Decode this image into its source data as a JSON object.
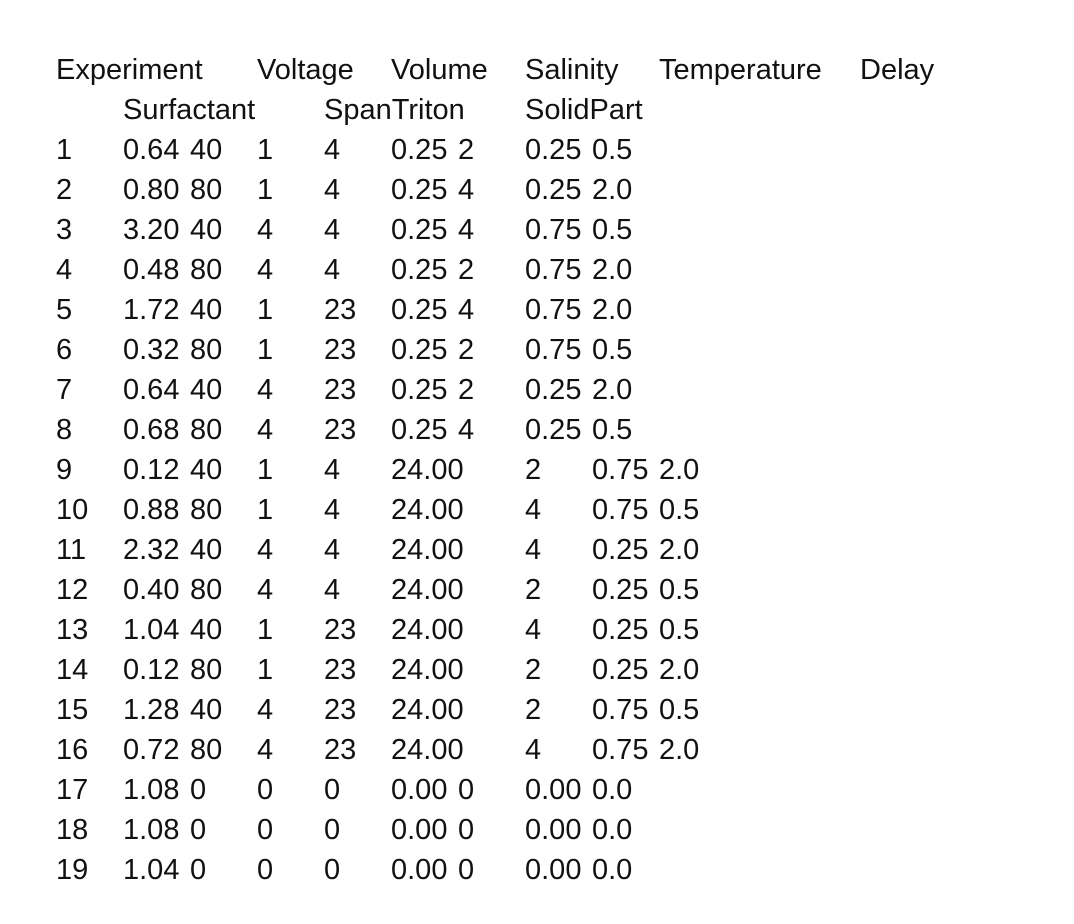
{
  "table": {
    "header": [
      "Experiment",
      "Voltage",
      "Volume",
      "Salinity",
      "Temperature",
      "Delay",
      "Surfactant",
      "SpanTriton",
      "SolidPart"
    ],
    "rows": [
      [
        "1",
        "0.64",
        "40",
        "1",
        "4",
        "0.25",
        "2",
        "0.25",
        "0.5"
      ],
      [
        "2",
        "0.80",
        "80",
        "1",
        "4",
        "0.25",
        "4",
        "0.25",
        "2.0"
      ],
      [
        "3",
        "3.20",
        "40",
        "4",
        "4",
        "0.25",
        "4",
        "0.75",
        "0.5"
      ],
      [
        "4",
        "0.48",
        "80",
        "4",
        "4",
        "0.25",
        "2",
        "0.75",
        "2.0"
      ],
      [
        "5",
        "1.72",
        "40",
        "1",
        "23",
        "0.25",
        "4",
        "0.75",
        "2.0"
      ],
      [
        "6",
        "0.32",
        "80",
        "1",
        "23",
        "0.25",
        "2",
        "0.75",
        "0.5"
      ],
      [
        "7",
        "0.64",
        "40",
        "4",
        "23",
        "0.25",
        "2",
        "0.25",
        "2.0"
      ],
      [
        "8",
        "0.68",
        "80",
        "4",
        "23",
        "0.25",
        "4",
        "0.25",
        "0.5"
      ],
      [
        "9",
        "0.12",
        "40",
        "1",
        "4",
        "24.00",
        "2",
        "0.75",
        "2.0"
      ],
      [
        "10",
        "0.88",
        "80",
        "1",
        "4",
        "24.00",
        "4",
        "0.75",
        "0.5"
      ],
      [
        "11",
        "2.32",
        "40",
        "4",
        "4",
        "24.00",
        "4",
        "0.25",
        "2.0"
      ],
      [
        "12",
        "0.40",
        "80",
        "4",
        "4",
        "24.00",
        "2",
        "0.25",
        "0.5"
      ],
      [
        "13",
        "1.04",
        "40",
        "1",
        "23",
        "24.00",
        "4",
        "0.25",
        "0.5"
      ],
      [
        "14",
        "0.12",
        "80",
        "1",
        "23",
        "24.00",
        "2",
        "0.25",
        "2.0"
      ],
      [
        "15",
        "1.28",
        "40",
        "4",
        "23",
        "24.00",
        "2",
        "0.75",
        "0.5"
      ],
      [
        "16",
        "0.72",
        "80",
        "4",
        "23",
        "24.00",
        "4",
        "0.75",
        "2.0"
      ],
      [
        "17",
        "1.08",
        "0",
        "0",
        "0",
        "0.00",
        "0",
        "0.00",
        "0.0"
      ],
      [
        "18",
        "1.08",
        "0",
        "0",
        "0",
        "0.00",
        "0",
        "0.00",
        "0.0"
      ],
      [
        "19",
        "1.04",
        "0",
        "0",
        "0",
        "0.00",
        "0",
        "0.00",
        "0.0"
      ]
    ]
  }
}
